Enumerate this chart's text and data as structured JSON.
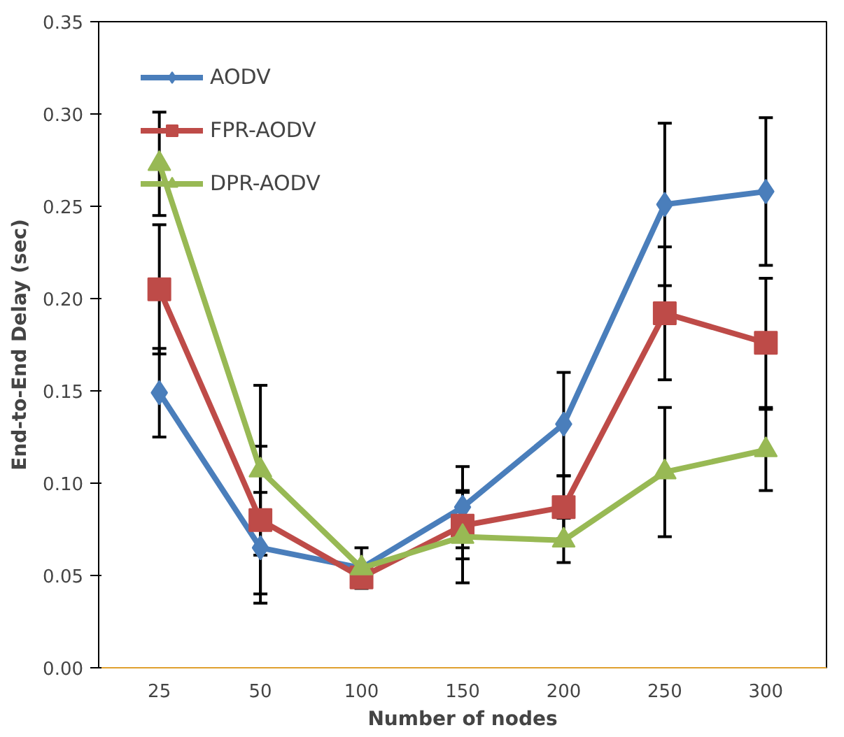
{
  "chart_data": {
    "type": "line",
    "xlabel": "Number of nodes",
    "ylabel": "End-to-End Delay (sec)",
    "categories": [
      "25",
      "50",
      "100",
      "150",
      "200",
      "250",
      "300"
    ],
    "ylim": [
      0,
      0.35
    ],
    "yticks": [
      {
        "value": 0,
        "label": "0.00"
      },
      {
        "value": 0.05,
        "label": "0.05"
      },
      {
        "value": 0.1,
        "label": "0.10"
      },
      {
        "value": 0.15,
        "label": "0.15"
      },
      {
        "value": 0.2,
        "label": "0.20"
      },
      {
        "value": 0.25,
        "label": "0.25"
      },
      {
        "value": 0.3,
        "label": "0.30"
      },
      {
        "value": 0.35,
        "label": "0.35"
      }
    ],
    "grid": false,
    "legend": "top left",
    "series": [
      {
        "name": "AODV",
        "color": "#4a7ebb",
        "marker": "diamond",
        "values": [
          0.149,
          0.065,
          0.054,
          0.087,
          0.132,
          0.251,
          0.258
        ],
        "errors": [
          0.024,
          0.03,
          0.011,
          0.022,
          0.028,
          0.044,
          0.04
        ]
      },
      {
        "name": "FPR-AODV",
        "color": "#be4b48",
        "marker": "square",
        "values": [
          0.205,
          0.08,
          0.049,
          0.077,
          0.087,
          0.192,
          0.176
        ],
        "errors": [
          0.035,
          0.04,
          null,
          0.018,
          0.017,
          0.036,
          0.035
        ]
      },
      {
        "name": "DPR-AODV",
        "color": "#98b954",
        "marker": "triangle",
        "values": [
          0.273,
          0.107,
          0.054,
          0.071,
          0.069,
          0.106,
          0.118
        ],
        "errors": [
          0.028,
          0.046,
          null,
          0.025,
          0.012,
          0.035,
          0.022
        ]
      }
    ]
  }
}
